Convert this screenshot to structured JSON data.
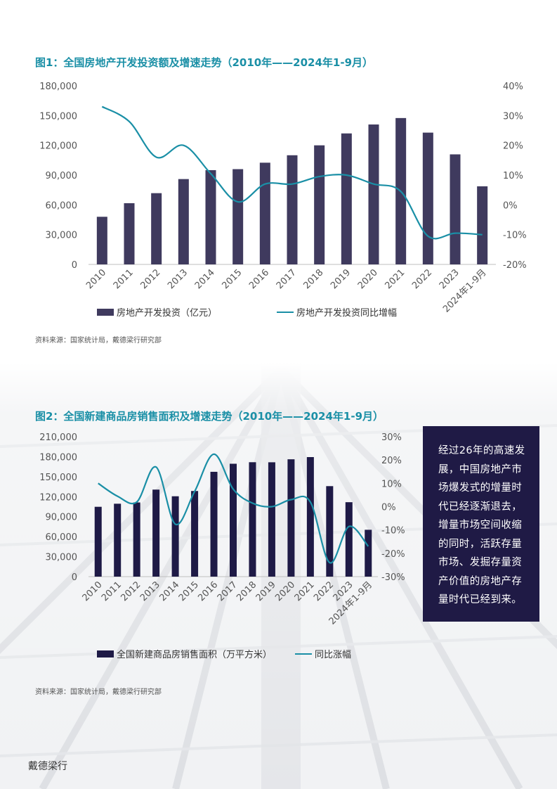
{
  "chart1_title": "图1：全国房地产开发投资额及增速走势（2010年——2024年1-9月）",
  "chart2_title": "图2：全国新建商品房销售面积及增速走势（2010年——2024年1-9月）",
  "source1": "资料来源：国家统计局，戴德梁行研究部",
  "source2": "资料来源：国家统计局，戴德梁行研究部",
  "callout_text": "经过26年的高速发展，中国房地产市场爆发式的增量时代已经逐渐退去，增量市场空间收缩的同时，活跃存量市场、发掘存量资产价值的房地产存量时代已经到来。",
  "footer_brand": "戴德梁行",
  "colors": {
    "bar1": "#3f3a5e",
    "bar2": "#1e1a46",
    "line": "#1a8fa6",
    "title": "#1a8fa6",
    "callout_bg": "#1f1a45"
  },
  "chart_data": [
    {
      "type": "bar+line",
      "title": "图1：全国房地产开发投资额及增速走势（2010年——2024年1-9月）",
      "categories": [
        "2010",
        "2011",
        "2012",
        "2013",
        "2014",
        "2015",
        "2016",
        "2017",
        "2018",
        "2019",
        "2020",
        "2021",
        "2022",
        "2023",
        "2024年1-9月"
      ],
      "series": [
        {
          "name": "房地产开发投资（亿元）",
          "type": "bar",
          "axis": "left",
          "values": [
            48000,
            61700,
            71800,
            86000,
            95000,
            96000,
            102500,
            110000,
            120000,
            132000,
            141000,
            147500,
            132800,
            110900,
            78700
          ]
        },
        {
          "name": "房地产开发投资同比增幅",
          "type": "line",
          "axis": "right",
          "unit": "%",
          "values": [
            33,
            28,
            16,
            20,
            10.5,
            1,
            7,
            7,
            9.5,
            10,
            7,
            4.5,
            -10.5,
            -9.5,
            -10
          ]
        }
      ],
      "y_left": {
        "min": 0,
        "max": 180000,
        "ticks": [
          "0",
          "30,000",
          "60,000",
          "90,000",
          "120,000",
          "150,000",
          "180,000"
        ]
      },
      "y_right": {
        "min": -20,
        "max": 40,
        "ticks": [
          "-20%",
          "-10%",
          "0%",
          "10%",
          "20%",
          "30%",
          "40%"
        ]
      },
      "legend": "bottom",
      "grid": false
    },
    {
      "type": "bar+line",
      "title": "图2：全国新建商品房销售面积及增速走势（2010年——2024年1-9月）",
      "categories": [
        "2010",
        "2011",
        "2012",
        "2013",
        "2014",
        "2015",
        "2016",
        "2017",
        "2018",
        "2019",
        "2020",
        "2021",
        "2022",
        "2023",
        "2024年1-9月"
      ],
      "series": [
        {
          "name": "全国新建商品房销售面积（万平方米）",
          "type": "bar",
          "axis": "left",
          "values": [
            104800,
            109400,
            111300,
            130600,
            120600,
            128500,
            157300,
            169400,
            171700,
            171600,
            176100,
            179400,
            135800,
            111700,
            70300
          ]
        },
        {
          "name": "同比涨幅",
          "type": "line",
          "axis": "right",
          "unit": "%",
          "values": [
            10,
            4.5,
            2,
            17,
            -7.5,
            6.5,
            22.5,
            7.5,
            1.5,
            0,
            3,
            2,
            -24,
            -8.5,
            -17
          ]
        }
      ],
      "y_left": {
        "min": 0,
        "max": 210000,
        "ticks": [
          "0",
          "30,000",
          "60,000",
          "90,000",
          "120,000",
          "150,000",
          "180,000",
          "210,000"
        ]
      },
      "y_right": {
        "min": -30,
        "max": 30,
        "ticks": [
          "-30%",
          "-20%",
          "-10%",
          "0%",
          "10%",
          "20%",
          "30%"
        ]
      },
      "legend": "bottom",
      "grid": false
    }
  ]
}
